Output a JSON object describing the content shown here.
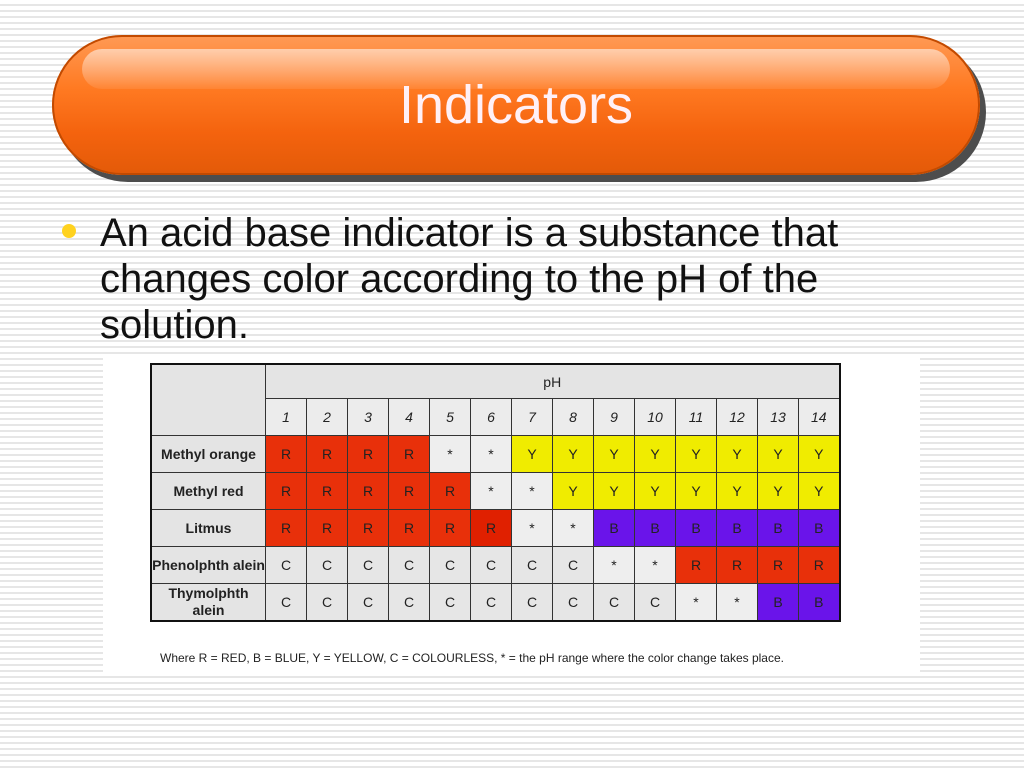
{
  "slide": {
    "title": "Indicators",
    "bullet": "An acid base indicator is a substance that changes color according to the pH of the solution."
  },
  "colors": {
    "title_bar": "#f4630e",
    "bullet": "#ffd21f",
    "red": "#e8300a",
    "yellow": "#f0ec00",
    "blue": "#6a14ea",
    "colourless": "#e6e6e6"
  },
  "table": {
    "ph_header": "pH",
    "ph_values": [
      "1",
      "2",
      "3",
      "4",
      "5",
      "6",
      "7",
      "8",
      "9",
      "10",
      "11",
      "12",
      "13",
      "14"
    ],
    "rows": [
      {
        "label": "Methyl orange",
        "cells": [
          "R",
          "R",
          "R",
          "R",
          "*",
          "*",
          "Y",
          "Y",
          "Y",
          "Y",
          "Y",
          "Y",
          "Y",
          "Y"
        ]
      },
      {
        "label": "Methyl red",
        "cells": [
          "R",
          "R",
          "R",
          "R",
          "R",
          "*",
          "*",
          "Y",
          "Y",
          "Y",
          "Y",
          "Y",
          "Y",
          "Y"
        ]
      },
      {
        "label": "Litmus",
        "cells": [
          "R",
          "R",
          "R",
          "R",
          "R",
          "R",
          "*",
          "*",
          "B",
          "B",
          "B",
          "B",
          "B",
          "B"
        ]
      },
      {
        "label": "Phenolphth alein",
        "cells": [
          "C",
          "C",
          "C",
          "C",
          "C",
          "C",
          "C",
          "C",
          "*",
          "*",
          "R",
          "R",
          "R",
          "R"
        ]
      },
      {
        "label": "Thymolphth alein",
        "cells": [
          "C",
          "C",
          "C",
          "C",
          "C",
          "C",
          "C",
          "C",
          "C",
          "C",
          "*",
          "*",
          "B",
          "B"
        ]
      }
    ],
    "legend": "Where R = RED, B = BLUE, Y = YELLOW, C = COLOURLESS, * = the pH range where the color change takes place."
  }
}
